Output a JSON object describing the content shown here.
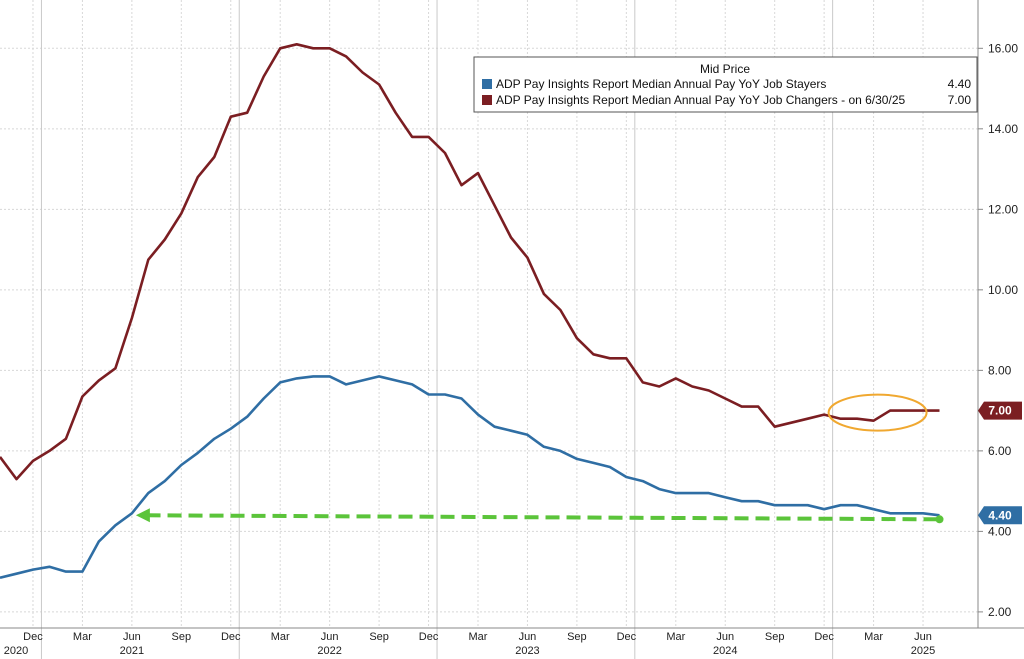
{
  "chart_data": {
    "type": "line",
    "legend": {
      "title": "Mid Price",
      "entries": [
        {
          "label": "ADP Pay Insights Report Median Annual Pay YoY Job Stayers",
          "value": "4.40"
        },
        {
          "label": "ADP Pay Insights Report Median Annual Pay YoY Job Changers  -   on 6/30/25",
          "value": "7.00"
        }
      ],
      "placement": "top-right"
    },
    "ylim": [
      1.6,
      17.2
    ],
    "y_ticks": [
      "2.00",
      "4.00",
      "6.00",
      "8.00",
      "10.00",
      "12.00",
      "14.00",
      "16.00"
    ],
    "y_tick_values": [
      2,
      4,
      6,
      8,
      10,
      12,
      14,
      16
    ],
    "x_ticks": [
      "Dec",
      "Mar",
      "Jun",
      "Sep",
      "Dec",
      "Mar",
      "Jun",
      "Sep",
      "Dec",
      "Mar",
      "Jun",
      "Sep",
      "Dec",
      "Mar",
      "Jun",
      "Sep",
      "Dec",
      "Mar",
      "Jun"
    ],
    "x_tick_dates": [
      "2020-12",
      "2021-03",
      "2021-06",
      "2021-09",
      "2021-12",
      "2022-03",
      "2022-06",
      "2022-09",
      "2022-12",
      "2023-03",
      "2023-06",
      "2023-09",
      "2023-12",
      "2024-03",
      "2024-06",
      "2024-09",
      "2024-12",
      "2025-03",
      "2025-06"
    ],
    "year_labels": [
      "2020",
      "2021",
      "2022",
      "2023",
      "2024",
      "2025"
    ],
    "year_dates": [
      "2020-10",
      "2021-06",
      "2022-06",
      "2023-06",
      "2024-06",
      "2025-06"
    ],
    "year_separators": [
      "2021-01",
      "2022-01",
      "2023-01",
      "2024-01",
      "2025-01"
    ],
    "x_range": [
      "2020-10",
      "2025-08"
    ],
    "grid": true,
    "series": [
      {
        "name": "ADP Pay Insights Report Median Annual Pay YoY Job Stayers",
        "color": "#2f6ea4",
        "last_value": "4.40",
        "points": [
          [
            "2020-10",
            2.85
          ],
          [
            "2020-11",
            2.95
          ],
          [
            "2020-12",
            3.05
          ],
          [
            "2021-01",
            3.12
          ],
          [
            "2021-02",
            3.0
          ],
          [
            "2021-03",
            3.0
          ],
          [
            "2021-04",
            3.75
          ],
          [
            "2021-05",
            4.15
          ],
          [
            "2021-06",
            4.45
          ],
          [
            "2021-07",
            4.95
          ],
          [
            "2021-08",
            5.25
          ],
          [
            "2021-09",
            5.65
          ],
          [
            "2021-10",
            5.95
          ],
          [
            "2021-11",
            6.3
          ],
          [
            "2021-12",
            6.55
          ],
          [
            "2022-01",
            6.85
          ],
          [
            "2022-02",
            7.3
          ],
          [
            "2022-03",
            7.7
          ],
          [
            "2022-04",
            7.8
          ],
          [
            "2022-05",
            7.85
          ],
          [
            "2022-06",
            7.85
          ],
          [
            "2022-07",
            7.65
          ],
          [
            "2022-08",
            7.75
          ],
          [
            "2022-09",
            7.85
          ],
          [
            "2022-10",
            7.75
          ],
          [
            "2022-11",
            7.65
          ],
          [
            "2022-12",
            7.4
          ],
          [
            "2023-01",
            7.4
          ],
          [
            "2023-02",
            7.3
          ],
          [
            "2023-03",
            6.9
          ],
          [
            "2023-04",
            6.6
          ],
          [
            "2023-05",
            6.5
          ],
          [
            "2023-06",
            6.4
          ],
          [
            "2023-07",
            6.1
          ],
          [
            "2023-08",
            6.0
          ],
          [
            "2023-09",
            5.8
          ],
          [
            "2023-10",
            5.7
          ],
          [
            "2023-11",
            5.6
          ],
          [
            "2023-12",
            5.35
          ],
          [
            "2024-01",
            5.25
          ],
          [
            "2024-02",
            5.05
          ],
          [
            "2024-03",
            4.95
          ],
          [
            "2024-04",
            4.95
          ],
          [
            "2024-05",
            4.95
          ],
          [
            "2024-06",
            4.85
          ],
          [
            "2024-07",
            4.75
          ],
          [
            "2024-08",
            4.75
          ],
          [
            "2024-09",
            4.65
          ],
          [
            "2024-10",
            4.65
          ],
          [
            "2024-11",
            4.65
          ],
          [
            "2024-12",
            4.55
          ],
          [
            "2025-01",
            4.65
          ],
          [
            "2025-02",
            4.65
          ],
          [
            "2025-03",
            4.55
          ],
          [
            "2025-04",
            4.45
          ],
          [
            "2025-05",
            4.45
          ],
          [
            "2025-06",
            4.45
          ],
          [
            "2025-07",
            4.4
          ]
        ]
      },
      {
        "name": "ADP Pay Insights Report Median Annual Pay YoY Job Changers",
        "color": "#7b1e22",
        "last_value": "7.00",
        "points": [
          [
            "2020-10",
            5.85
          ],
          [
            "2020-11",
            5.3
          ],
          [
            "2020-12",
            5.75
          ],
          [
            "2021-01",
            6.0
          ],
          [
            "2021-02",
            6.3
          ],
          [
            "2021-03",
            7.35
          ],
          [
            "2021-04",
            7.75
          ],
          [
            "2021-05",
            8.05
          ],
          [
            "2021-06",
            9.3
          ],
          [
            "2021-07",
            10.75
          ],
          [
            "2021-08",
            11.25
          ],
          [
            "2021-09",
            11.9
          ],
          [
            "2021-10",
            12.8
          ],
          [
            "2021-11",
            13.3
          ],
          [
            "2021-12",
            14.3
          ],
          [
            "2022-01",
            14.4
          ],
          [
            "2022-02",
            15.3
          ],
          [
            "2022-03",
            16.0
          ],
          [
            "2022-04",
            16.1
          ],
          [
            "2022-05",
            16.0
          ],
          [
            "2022-06",
            16.0
          ],
          [
            "2022-07",
            15.8
          ],
          [
            "2022-08",
            15.4
          ],
          [
            "2022-09",
            15.1
          ],
          [
            "2022-10",
            14.4
          ],
          [
            "2022-11",
            13.8
          ],
          [
            "2022-12",
            13.8
          ],
          [
            "2023-01",
            13.4
          ],
          [
            "2023-02",
            12.6
          ],
          [
            "2023-03",
            12.9
          ],
          [
            "2023-04",
            12.1
          ],
          [
            "2023-05",
            11.3
          ],
          [
            "2023-06",
            10.8
          ],
          [
            "2023-07",
            9.9
          ],
          [
            "2023-08",
            9.5
          ],
          [
            "2023-09",
            8.8
          ],
          [
            "2023-10",
            8.4
          ],
          [
            "2023-11",
            8.3
          ],
          [
            "2023-12",
            8.3
          ],
          [
            "2024-01",
            7.7
          ],
          [
            "2024-02",
            7.6
          ],
          [
            "2024-03",
            7.8
          ],
          [
            "2024-04",
            7.6
          ],
          [
            "2024-05",
            7.5
          ],
          [
            "2024-06",
            7.3
          ],
          [
            "2024-07",
            7.1
          ],
          [
            "2024-08",
            7.1
          ],
          [
            "2024-09",
            6.6
          ],
          [
            "2024-10",
            6.7
          ],
          [
            "2024-11",
            6.8
          ],
          [
            "2024-12",
            6.9
          ],
          [
            "2025-01",
            6.8
          ],
          [
            "2025-02",
            6.8
          ],
          [
            "2025-03",
            6.75
          ],
          [
            "2025-04",
            7.0
          ],
          [
            "2025-05",
            7.0
          ],
          [
            "2025-06",
            7.0
          ],
          [
            "2025-07",
            7.0
          ]
        ]
      }
    ],
    "annotations": [
      {
        "type": "dashed-arrow",
        "color": "#5bc43a",
        "from": [
          "2025-07",
          4.3
        ],
        "to": [
          "2021-06",
          4.4
        ]
      },
      {
        "type": "ellipse",
        "color": "#f0a830",
        "center": [
          "2025-03",
          7.0
        ]
      }
    ],
    "colors": {
      "grid": "#d8d8d8",
      "axis": "#888888"
    }
  }
}
